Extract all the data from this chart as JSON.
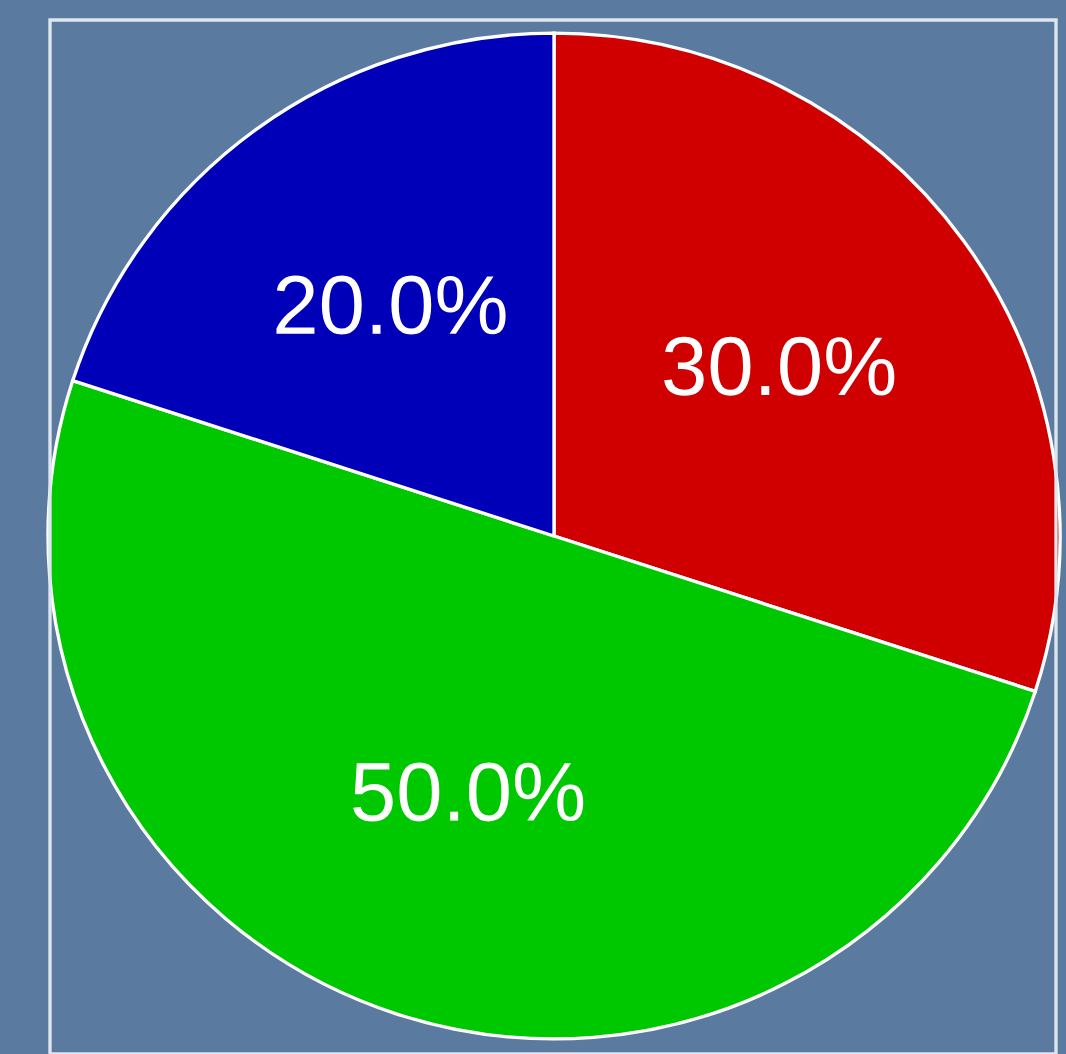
{
  "chart_data": {
    "type": "pie",
    "categories": [
      null,
      null,
      null
    ],
    "values": [
      30,
      50,
      20
    ],
    "colors": [
      "#d00000",
      "#00c800",
      "#0000b8"
    ],
    "value_labels": [
      "30.0%",
      "50.0%",
      "20.0%"
    ]
  }
}
